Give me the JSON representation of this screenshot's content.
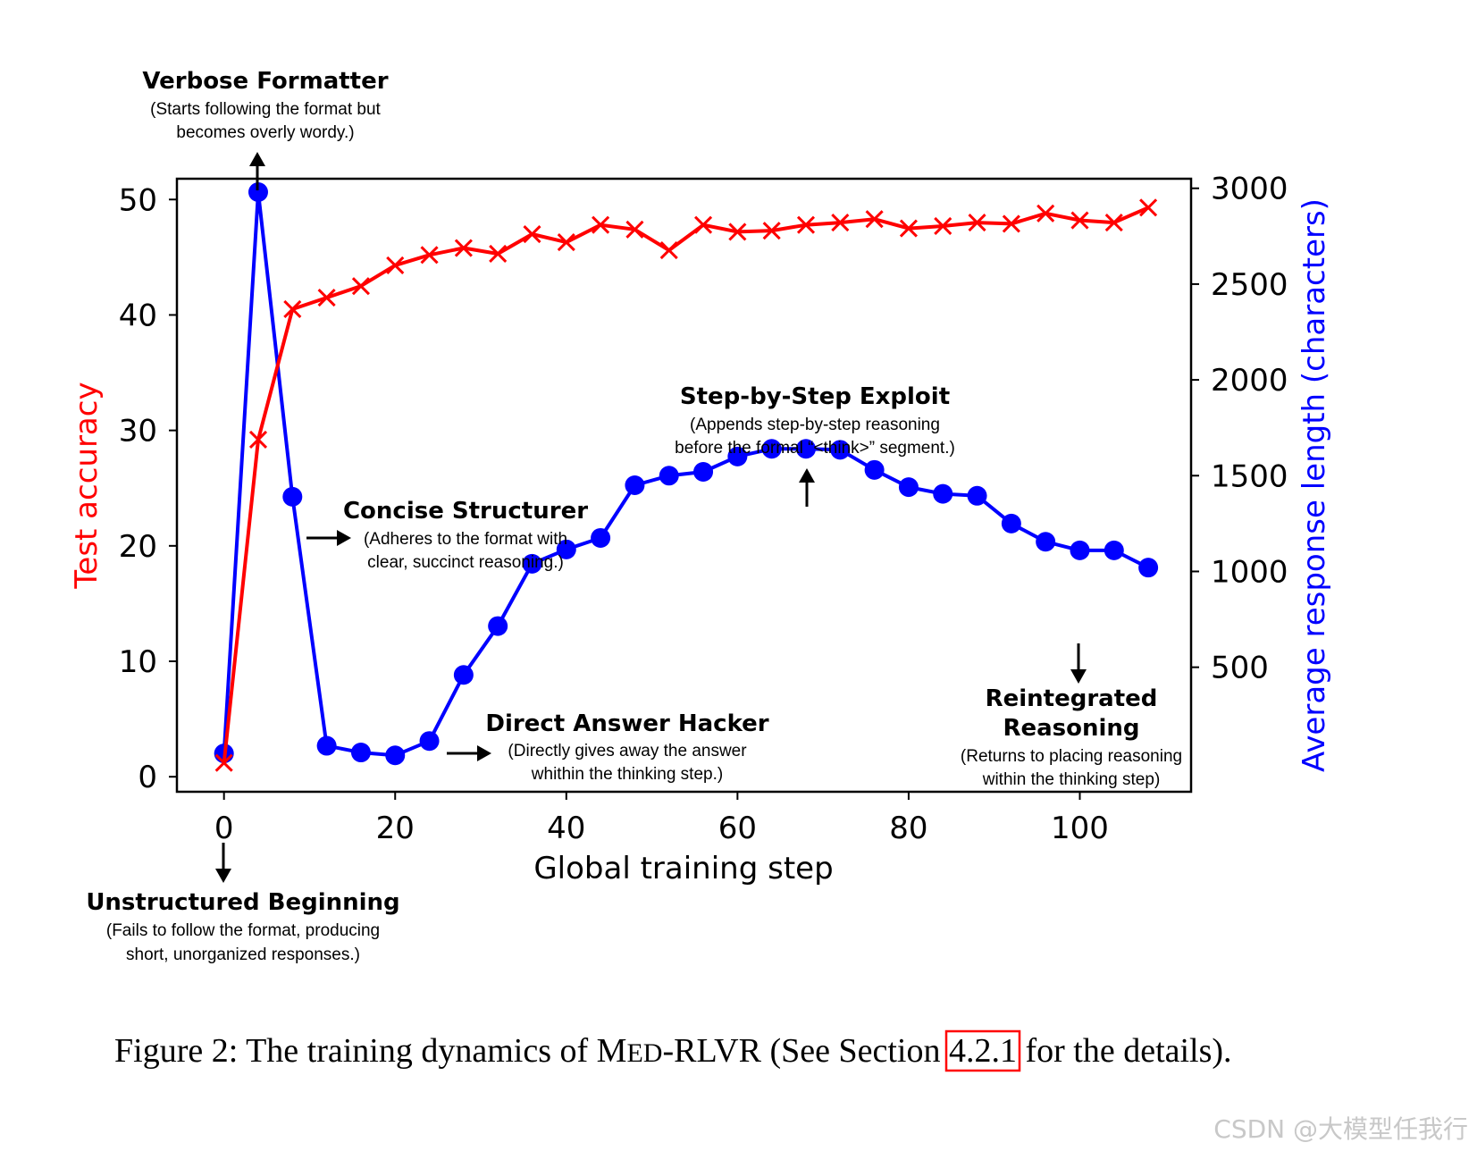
{
  "chart_data": {
    "type": "line",
    "xlabel": "Global training step",
    "ylabel_left": "Test accuracy",
    "ylabel_right": "Average response length (characters)",
    "xlim": [
      -5.5,
      113
    ],
    "ylim_left": [
      -1.3,
      51.8
    ],
    "ylim_right": [
      -150,
      3050
    ],
    "xticks": [
      0,
      20,
      40,
      60,
      80,
      100
    ],
    "yticks_left": [
      0,
      10,
      20,
      30,
      40,
      50
    ],
    "yticks_right": [
      500,
      1000,
      1500,
      2000,
      2500,
      3000
    ],
    "series": [
      {
        "name": "Test accuracy",
        "axis": "left",
        "color": "#ff0000",
        "marker": "x",
        "x": [
          0,
          4,
          8,
          12,
          16,
          20,
          24,
          28,
          32,
          36,
          40,
          44,
          48,
          52,
          56,
          60,
          64,
          68,
          72,
          76,
          80,
          84,
          88,
          92,
          96,
          100,
          104,
          108
        ],
        "values": [
          1.2,
          29.2,
          40.5,
          41.5,
          42.5,
          44.3,
          45.2,
          45.8,
          45.3,
          47.0,
          46.3,
          47.8,
          47.4,
          45.6,
          47.8,
          47.2,
          47.3,
          47.8,
          48.0,
          48.3,
          47.5,
          47.7,
          48.0,
          47.9,
          48.8,
          48.2,
          48.0,
          49.3
        ]
      },
      {
        "name": "Average response length",
        "axis": "right",
        "color": "#0000ff",
        "marker": "o",
        "x": [
          0,
          4,
          8,
          12,
          16,
          20,
          24,
          28,
          32,
          36,
          40,
          44,
          48,
          52,
          56,
          60,
          64,
          68,
          72,
          76,
          80,
          84,
          88,
          92,
          96,
          100,
          104,
          108
        ],
        "values": [
          50,
          2980,
          1390,
          90,
          55,
          40,
          115,
          460,
          715,
          1040,
          1115,
          1175,
          1450,
          1500,
          1520,
          1600,
          1640,
          1640,
          1635,
          1530,
          1440,
          1405,
          1395,
          1250,
          1155,
          1110,
          1110,
          1020
        ]
      }
    ],
    "annotations": [
      {
        "title": "Verbose Formatter",
        "lines": [
          "(Starts following the format but",
          "becomes overly wordy.)"
        ]
      },
      {
        "title": "Concise Structurer",
        "lines": [
          "(Adheres to the format with",
          "clear, succinct reasoning.)"
        ]
      },
      {
        "title": "Step-by-Step Exploit",
        "lines": [
          "(Appends step-by-step reasoning",
          "before the formal “<think>” segment.)"
        ]
      },
      {
        "title": "Direct Answer Hacker",
        "lines": [
          "(Directly gives away the answer",
          "whithin the thinking step.)"
        ]
      },
      {
        "title_lines": [
          "Reintegrated",
          "Reasoning"
        ],
        "lines": [
          "(Returns to placing reasoning",
          "within the thinking step)"
        ]
      },
      {
        "title": "Unstructured Beginning",
        "lines": [
          "(Fails to follow the format, producing",
          "short, unorganized responses.)"
        ]
      }
    ]
  },
  "caption": {
    "prefix": "Figure 2: The training dynamics of ",
    "med_first": "M",
    "med_rest": "ED",
    "suffix_name": "-RLVR (See Section ",
    "ref": "4.2.1",
    "tail": " for the details)."
  },
  "watermark": "CSDN @大模型任我行"
}
